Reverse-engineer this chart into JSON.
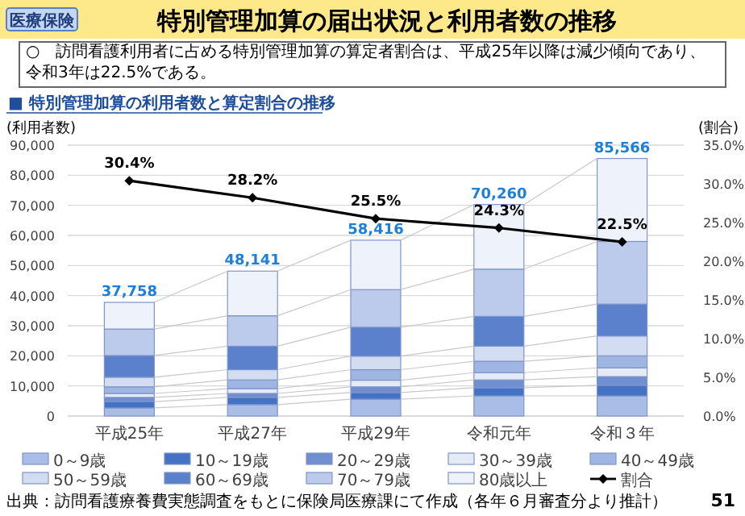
{
  "chart_data": {
    "type": "bar",
    "stacked": true,
    "title": "特別管理加算の届出状況と利用者数の推移",
    "subtitle": "■ 特別管理加算の利用者数と算定割合の推移",
    "ylabel": "(利用者数)",
    "y2label": "(割合)",
    "annotations": [
      "医療保険",
      "○　訪問看護利用者に占める特別管理加算の算定者割合は、平成25年以降は減少傾向であり、令和3年は22.5%である。",
      "出典：訪問看護療養費実態調査をもとに保険局医療課にて作成（各年６月審査分より推計）",
      "51"
    ],
    "categories": [
      "平成25年",
      "平成27年",
      "平成29年",
      "令和元年",
      "令和３年"
    ],
    "series": [
      {
        "name": "0～9歳",
        "color": "#a9bde6",
        "values": [
          2700,
          3800,
          5600,
          6700,
          6700
        ]
      },
      {
        "name": "10～19歳",
        "color": "#4472c4",
        "values": [
          2100,
          2400,
          2200,
          2700,
          3500
        ]
      },
      {
        "name": "20～29歳",
        "color": "#6f8fd0",
        "values": [
          1400,
          1300,
          1900,
          2600,
          2900
        ]
      },
      {
        "name": "30～39歳",
        "color": "#e4eaf6",
        "values": [
          1300,
          1600,
          2200,
          2400,
          2900
        ]
      },
      {
        "name": "40～49歳",
        "color": "#9fb5e2",
        "values": [
          2200,
          2900,
          3500,
          3800,
          4000
        ]
      },
      {
        "name": "50～59歳",
        "color": "#d3ddf1",
        "values": [
          3200,
          3400,
          4500,
          5000,
          6600
        ]
      },
      {
        "name": "60～69歳",
        "color": "#5b80cc",
        "values": [
          7200,
          7800,
          9600,
          9900,
          10600
        ]
      },
      {
        "name": "70～79歳",
        "color": "#bccbeb",
        "values": [
          8800,
          10100,
          12500,
          15700,
          20800
        ]
      },
      {
        "name": "80歳以上",
        "color": "#eef2fa",
        "values": [
          8858,
          14841,
          16416,
          21460,
          27566
        ]
      },
      {
        "name": "割合",
        "type": "line",
        "axis": "y2",
        "color": "#000000",
        "marker": "diamond",
        "values": [
          30.4,
          28.2,
          25.5,
          24.3,
          22.5
        ],
        "value_labels": [
          "30.4%",
          "28.2%",
          "25.5%",
          "24.3%",
          "22.5%"
        ]
      }
    ],
    "totals": [
      "37,758",
      "48,141",
      "58,416",
      "70,260",
      "85,566"
    ],
    "ylim": [
      0,
      90000
    ],
    "yticks": [
      0,
      {
        "value": 10000,
        "label": "10,000"
      },
      {
        "value": 20000,
        "label": "20,000"
      },
      {
        "value": 30000,
        "label": "30,000"
      },
      {
        "value": 40000,
        "label": "40,000"
      },
      {
        "value": 50000,
        "label": "50,000"
      },
      {
        "value": 60000,
        "label": "60,000"
      },
      {
        "value": 70000,
        "label": "70,000"
      },
      {
        "value": 80000,
        "label": "80,000"
      },
      {
        "value": 90000,
        "label": "90,000"
      }
    ],
    "y2lim": [
      0,
      35
    ],
    "y2ticks": [
      {
        "value": 0,
        "label": "0.0%"
      },
      {
        "value": 5,
        "label": "5.0%"
      },
      {
        "value": 10,
        "label": "10.0%"
      },
      {
        "value": 15,
        "label": "15.0%"
      },
      {
        "value": 20,
        "label": "20.0%"
      },
      {
        "value": 25,
        "label": "25.0%"
      },
      {
        "value": 30,
        "label": "30.0%"
      },
      {
        "value": 35,
        "label": "35.0%"
      }
    ],
    "grid": "y",
    "legend": "bottom"
  }
}
